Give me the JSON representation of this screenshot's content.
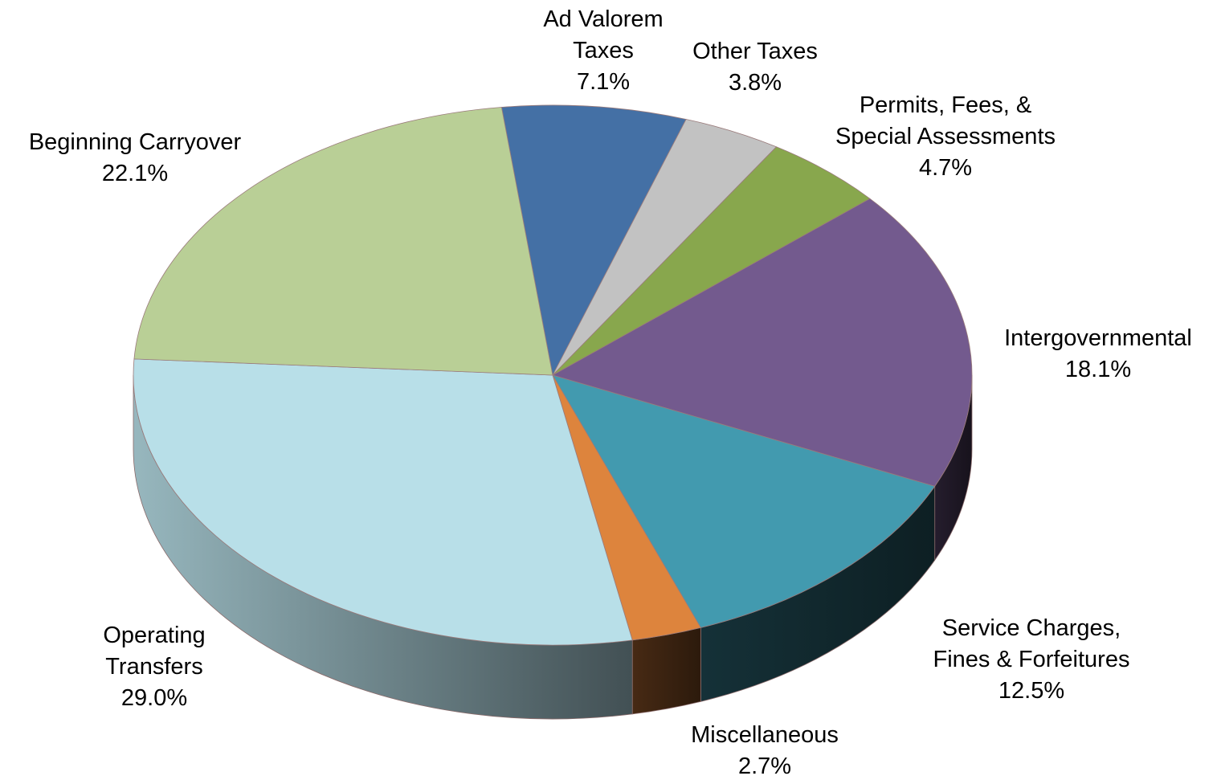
{
  "chart_data": {
    "type": "pie",
    "style": "3d",
    "title": "",
    "slices": [
      {
        "label": [
          "Ad Valorem",
          "Taxes"
        ],
        "value": 7.1,
        "value_label": "7.1%",
        "color": "#4470A5"
      },
      {
        "label": [
          "Other Taxes"
        ],
        "value": 3.8,
        "value_label": "3.8%",
        "color": "#C2C2C2"
      },
      {
        "label": [
          "Permits, Fees, &",
          "Special Assessments"
        ],
        "value": 4.7,
        "value_label": "4.7%",
        "color": "#88A74D"
      },
      {
        "label": [
          "Intergovernmental"
        ],
        "value": 18.1,
        "value_label": "18.1%",
        "color": "#735A8E"
      },
      {
        "label": [
          "Service Charges,",
          "Fines & Forfeitures"
        ],
        "value": 12.5,
        "value_label": "12.5%",
        "color": "#429AAF"
      },
      {
        "label": [
          "Miscellaneous"
        ],
        "value": 2.7,
        "value_label": "2.7%",
        "color": "#DD843D"
      },
      {
        "label": [
          "Operating",
          "Transfers"
        ],
        "value": 29.0,
        "value_label": "29.0%",
        "color": "#B8DFE8"
      },
      {
        "label": [
          "Beginning Carryover"
        ],
        "value": 22.1,
        "value_label": "22.1%",
        "color": "#B9CF96"
      }
    ]
  }
}
